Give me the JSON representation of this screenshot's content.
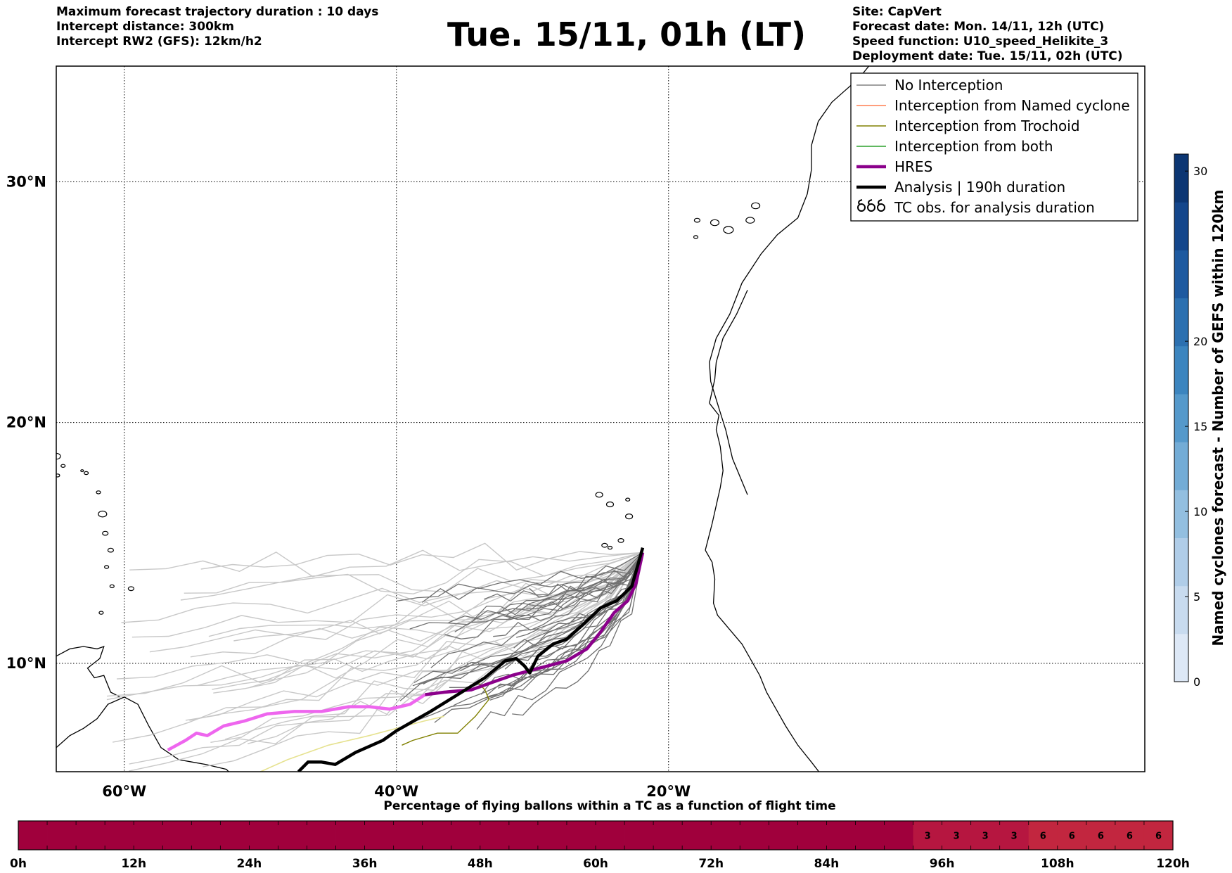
{
  "header_left": [
    "Maximum forecast trajectory duration : 10 days",
    "Intercept distance: 300km",
    "Intercept RW2 (GFS):  12km/h2"
  ],
  "title": "Tue. 15/11, 01h (LT)",
  "header_right": [
    "Site: CapVert",
    "Forecast date: Mon. 14/11, 12h (UTC)",
    "Speed function: U10_speed_Helikite_3",
    "Deployment date: Tue. 15/11, 02h (UTC)"
  ],
  "map": {
    "lon_range": [
      -65,
      15
    ],
    "lat_range": [
      5.5,
      34.8
    ],
    "lon_ticks": [
      {
        "lon": -60,
        "label": "60°W"
      },
      {
        "lon": -40,
        "label": "40°W"
      },
      {
        "lon": -20,
        "label": "20°W"
      }
    ],
    "lat_ticks": [
      {
        "lat": 30,
        "label": "30°N"
      },
      {
        "lat": 20,
        "label": "20°N"
      },
      {
        "lat": 10,
        "label": "10°N"
      }
    ],
    "gridlines": "dotted",
    "hres_track": [
      [
        -56.8,
        6.4
      ],
      [
        -55.5,
        6.8
      ],
      [
        -54.7,
        7.1
      ],
      [
        -53.9,
        7.0
      ],
      [
        -52.7,
        7.4
      ],
      [
        -51.2,
        7.6
      ],
      [
        -49.5,
        7.9
      ],
      [
        -47.5,
        8.0
      ],
      [
        -45.5,
        8.0
      ],
      [
        -43.5,
        8.2
      ],
      [
        -42,
        8.2
      ],
      [
        -40.5,
        8.1
      ],
      [
        -39,
        8.3
      ],
      [
        -37.9,
        8.7
      ],
      [
        -36.5,
        8.8
      ],
      [
        -34.5,
        8.9
      ],
      [
        -33,
        9.2
      ],
      [
        -31.5,
        9.5
      ],
      [
        -29.5,
        9.8
      ],
      [
        -27.5,
        10.1
      ],
      [
        -26,
        10.6
      ],
      [
        -25,
        11.3
      ],
      [
        -24,
        12.1
      ],
      [
        -23,
        12.6
      ],
      [
        -22.4,
        13.3
      ],
      [
        -21.9,
        14.6
      ]
    ],
    "analysis_track": [
      [
        -47.2,
        5.5
      ],
      [
        -46.5,
        5.9
      ],
      [
        -45.5,
        5.9
      ],
      [
        -44.5,
        5.8
      ],
      [
        -43,
        6.3
      ],
      [
        -41,
        6.8
      ],
      [
        -40,
        7.2
      ],
      [
        -37.5,
        8.0
      ],
      [
        -35.5,
        8.7
      ],
      [
        -33.5,
        9.4
      ],
      [
        -32,
        10.1
      ],
      [
        -31.2,
        10.2
      ],
      [
        -30.6,
        9.9
      ],
      [
        -30.2,
        9.6
      ],
      [
        -29.6,
        10.3
      ],
      [
        -28.5,
        10.8
      ],
      [
        -27.5,
        11.0
      ],
      [
        -26.3,
        11.6
      ],
      [
        -25,
        12.3
      ],
      [
        -23.8,
        12.6
      ],
      [
        -22.7,
        13.2
      ],
      [
        -21.9,
        14.8
      ]
    ],
    "trochoid_track": [
      [
        -39.6,
        6.6
      ],
      [
        -38.8,
        6.8
      ],
      [
        -37,
        7.1
      ],
      [
        -35.5,
        7.1
      ],
      [
        -34.2,
        7.8
      ],
      [
        -33.2,
        8.5
      ],
      [
        -33.5,
        8.9
      ],
      [
        -34,
        9.2
      ]
    ],
    "analysis_track_light": [
      [
        -50,
        5.5
      ],
      [
        -48,
        6.0
      ],
      [
        -45,
        6.6
      ],
      [
        -42,
        7.0
      ],
      [
        -40,
        7.3
      ],
      [
        -38,
        7.6
      ],
      [
        -36.5,
        7.8
      ]
    ],
    "colors": {
      "no_interception": "#808080",
      "named_cyclone": "#ff7f50",
      "trochoid": "#808000",
      "both": "#2ca02c",
      "hres": "#8b008b",
      "hres_light": "#ee66ee",
      "analysis": "#000000",
      "ensemble_far": "#c8c8c8",
      "ensemble_near": "#707070"
    }
  },
  "legend": {
    "entries": [
      {
        "label": "No Interception",
        "style": "thin",
        "color": "#808080"
      },
      {
        "label": "Interception from Named cyclone",
        "style": "thin",
        "color": "#ff7f50"
      },
      {
        "label": "Interception from Trochoid",
        "style": "thin",
        "color": "#808000"
      },
      {
        "label": "Interception from both",
        "style": "thin",
        "color": "#2ca02c"
      },
      {
        "label": "HRES",
        "style": "thick",
        "color": "#8b008b"
      },
      {
        "label": "Analysis | 190h duration",
        "style": "thick",
        "color": "#000000"
      },
      {
        "label": "TC obs. for analysis duration",
        "style": "cyclone-icon",
        "color": "#000000"
      }
    ]
  },
  "colorbar_right": {
    "label": "Named cyclones forecast - Number of GEFS within 120km",
    "ticks": [
      0,
      5,
      10,
      15,
      20,
      30
    ],
    "max": 31,
    "colors": [
      "#dde8f6",
      "#c8dbef",
      "#b0cde8",
      "#93bfe0",
      "#73acd6",
      "#5599cb",
      "#3c85bf",
      "#2c70b0",
      "#1e5aa0",
      "#14468b",
      "#0c3673"
    ]
  },
  "colorbar_bottom": {
    "title": "Percentage of flying ballons within a TC as a function of flight time",
    "tick_labels": [
      "0h",
      "12h",
      "24h",
      "36h",
      "48h",
      "60h",
      "72h",
      "84h",
      "96h",
      "108h",
      "120h"
    ],
    "hours_per_cell": 3,
    "cells": [
      0,
      0,
      0,
      0,
      0,
      0,
      0,
      0,
      0,
      0,
      0,
      0,
      0,
      0,
      0,
      0,
      0,
      0,
      0,
      0,
      0,
      0,
      0,
      0,
      0,
      0,
      0,
      0,
      0,
      0,
      0,
      3,
      3,
      3,
      3,
      6,
      6,
      6,
      6,
      6
    ],
    "color_zero": "#a0003c",
    "color_low": "#b61640",
    "color_mid": "#c2263f"
  }
}
